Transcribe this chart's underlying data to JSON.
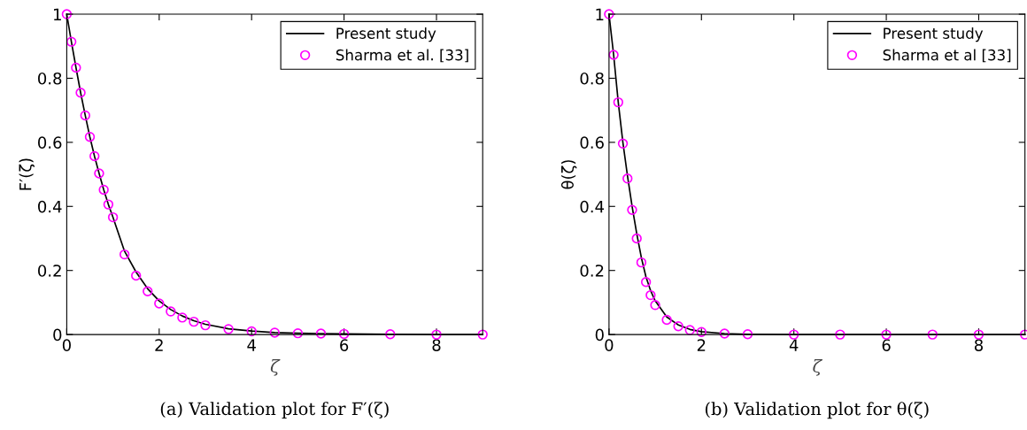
{
  "chart_data": [
    {
      "type": "line",
      "xlabel": "ζ",
      "ylabel": "F′(ζ)",
      "xlim": [
        0,
        9
      ],
      "ylim": [
        0,
        1
      ],
      "xticks": [
        0,
        2,
        4,
        6,
        8
      ],
      "yticks": [
        0,
        0.2,
        0.4,
        0.6,
        0.8,
        1
      ],
      "legend": "top right",
      "grid": false,
      "annotations": [
        "(a) Validation plot for F′(ζ)"
      ],
      "x": [
        0,
        0.1,
        0.2,
        0.3,
        0.4,
        0.5,
        0.6,
        0.7,
        0.8,
        0.9,
        1.0,
        1.25,
        1.5,
        1.75,
        2.0,
        2.25,
        2.5,
        2.75,
        3.0,
        3.5,
        4.0,
        4.5,
        5.0,
        5.5,
        6.0,
        7.0,
        8.0,
        9.0
      ],
      "series": [
        {
          "name": "Present study",
          "color": "#000000",
          "line_style": "solid",
          "marker": "none",
          "values": [
            1,
            0.914,
            0.833,
            0.755,
            0.684,
            0.617,
            0.557,
            0.503,
            0.452,
            0.406,
            0.366,
            0.26,
            0.195,
            0.143,
            0.105,
            0.078,
            0.058,
            0.043,
            0.032,
            0.018,
            0.011,
            0.006,
            0.004,
            0.003,
            0.002,
            0.001,
            0,
            0
          ]
        },
        {
          "name": "Sharma et al. [33]",
          "type": "scatter",
          "color": "#ff00ff",
          "marker": "circle",
          "values": [
            1,
            0.914,
            0.833,
            0.755,
            0.684,
            0.617,
            0.557,
            0.503,
            0.452,
            0.406,
            0.366,
            0.25,
            0.184,
            0.135,
            0.097,
            0.072,
            0.053,
            0.04,
            0.029,
            0.017,
            0.01,
            0.006,
            0.004,
            0.003,
            0.002,
            0.001,
            0,
            0
          ]
        }
      ]
    },
    {
      "type": "line",
      "xlabel": "ζ",
      "ylabel": "θ(ζ)",
      "xlim": [
        0,
        9
      ],
      "ylim": [
        0,
        1
      ],
      "xticks": [
        0,
        2,
        4,
        6,
        8
      ],
      "yticks": [
        0,
        0.2,
        0.4,
        0.6,
        0.8,
        1
      ],
      "legend": "top right",
      "grid": false,
      "annotations": [
        "(b) Validation plot for θ(ζ)"
      ],
      "x": [
        0,
        0.1,
        0.2,
        0.3,
        0.4,
        0.5,
        0.6,
        0.7,
        0.8,
        0.9,
        1.0,
        1.25,
        1.5,
        1.75,
        2.0,
        2.5,
        3.0,
        4.0,
        5.0,
        6.0,
        7.0,
        8.0,
        9.0
      ],
      "series": [
        {
          "name": "Present study",
          "color": "#000000",
          "line_style": "solid",
          "marker": "none",
          "values": [
            1,
            0.873,
            0.725,
            0.6,
            0.495,
            0.4,
            0.315,
            0.24,
            0.18,
            0.137,
            0.105,
            0.055,
            0.03,
            0.016,
            0.009,
            0.003,
            0.001,
            0,
            0,
            0,
            0,
            0,
            0
          ]
        },
        {
          "name": "Sharma et al [33]",
          "type": "scatter",
          "color": "#ff00ff",
          "marker": "circle",
          "values": [
            1,
            0.873,
            0.725,
            0.596,
            0.487,
            0.389,
            0.3,
            0.225,
            0.164,
            0.123,
            0.092,
            0.046,
            0.026,
            0.014,
            0.008,
            0.003,
            0.001,
            0,
            0,
            0,
            0,
            0,
            0
          ]
        }
      ]
    }
  ]
}
